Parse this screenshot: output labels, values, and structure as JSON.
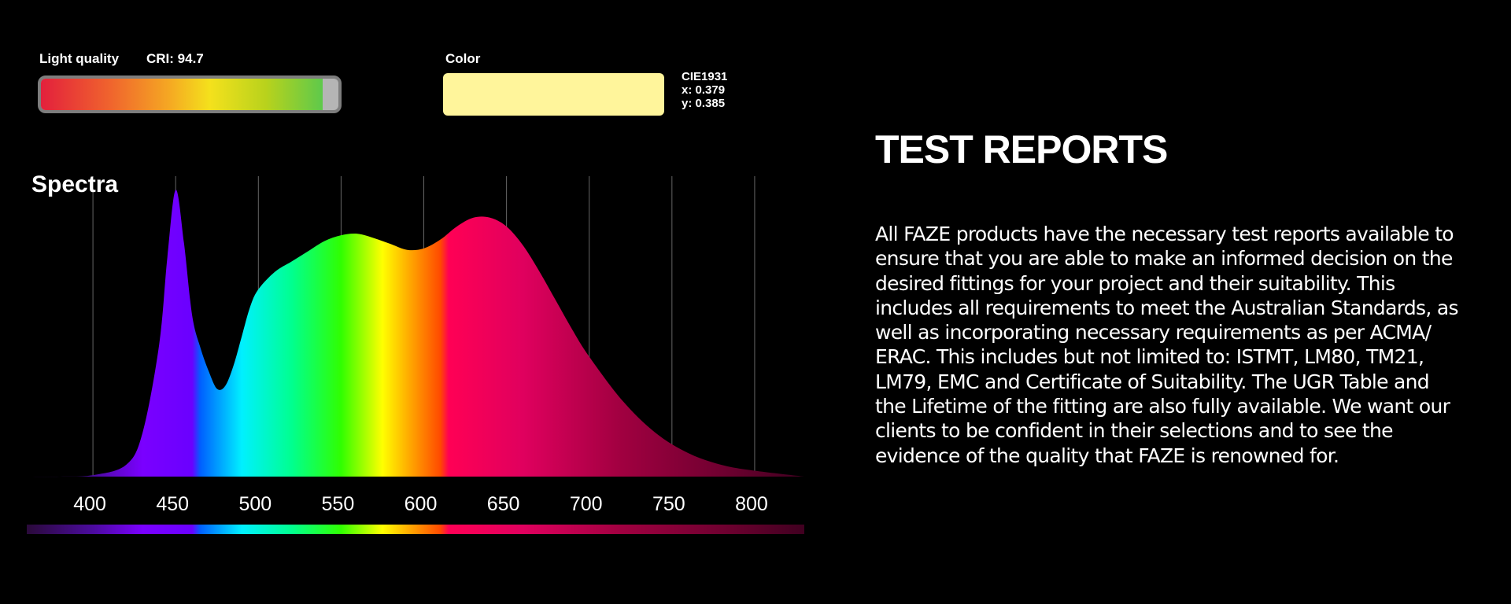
{
  "quality": {
    "label": "Light quality",
    "cri_label": "CRI:  94.7",
    "cri_value": 94.7,
    "cri_max": 100
  },
  "color": {
    "label": "Color",
    "swatch": "#fff59b",
    "cie_label": "CIE1931",
    "x_label": "x: 0.379",
    "y_label": "y: 0.385"
  },
  "chart_data": {
    "type": "area",
    "title": "Spectra",
    "xlabel": "",
    "ylabel": "",
    "xlim": [
      360,
      830
    ],
    "ylim": [
      0,
      1
    ],
    "x_ticks": [
      400,
      450,
      500,
      550,
      600,
      650,
      700,
      750,
      800
    ],
    "grid": true,
    "series": [
      {
        "x": [
          360,
          380,
          400,
          420,
          430,
          440,
          445,
          450,
          455,
          460,
          465,
          470,
          475,
          480,
          485,
          490,
          495,
          500,
          510,
          520,
          530,
          540,
          550,
          560,
          570,
          580,
          590,
          600,
          610,
          620,
          630,
          640,
          650,
          660,
          670,
          680,
          690,
          700,
          720,
          740,
          760,
          780,
          800,
          830
        ],
        "values": [
          0.0,
          0.0,
          0.005,
          0.04,
          0.15,
          0.45,
          0.75,
          0.98,
          0.8,
          0.55,
          0.44,
          0.36,
          0.3,
          0.31,
          0.38,
          0.48,
          0.58,
          0.64,
          0.7,
          0.735,
          0.77,
          0.805,
          0.825,
          0.83,
          0.815,
          0.795,
          0.775,
          0.78,
          0.81,
          0.855,
          0.885,
          0.885,
          0.855,
          0.79,
          0.7,
          0.6,
          0.5,
          0.41,
          0.26,
          0.15,
          0.08,
          0.04,
          0.02,
          0.0
        ]
      }
    ]
  },
  "report": {
    "title": "TEST REPORTS",
    "body": "All FAZE products have the necessary test reports available to\nensure that you are able to make an informed decision on the\ndesired fittings for your project and their suitability. This\n includes all requirements to meet the Australian Standards, as\nwell as incorporating necessary requirements as per ACMA/\nERAC. This includes but not limited to: ISTMT, LM80, TM21,\nLM79, EMC and Certificate of Suitability. The UGR Table and\nthe Lifetime of the fitting are also fully available. We want our\nclients to be confident in their selections and to see the\nevidence of the quality that FAZE is renowned for."
  }
}
